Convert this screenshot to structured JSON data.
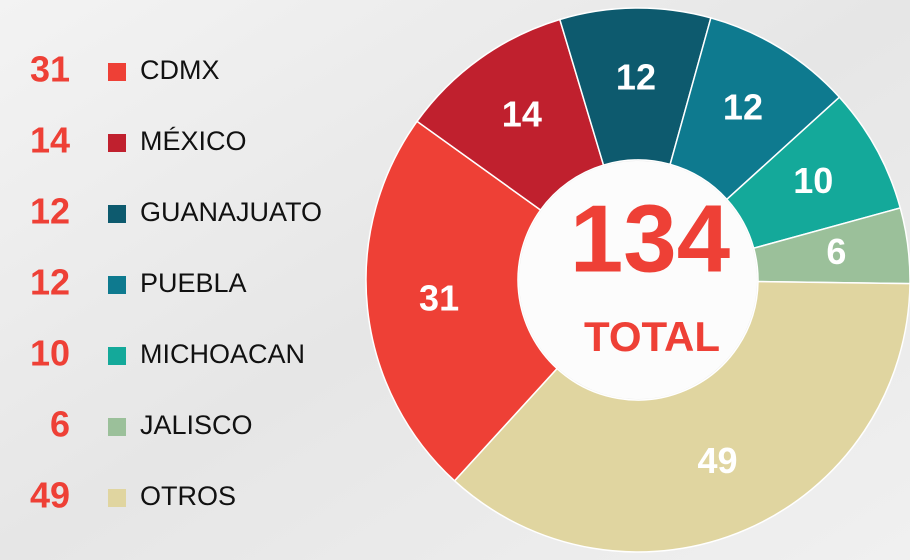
{
  "chart_data": {
    "type": "pie",
    "donut": true,
    "categories": [
      "CDMX",
      "MÉXICO",
      "GUANAJUATO",
      "PUEBLA",
      "MICHOACAN",
      "JALISCO",
      "OTROS"
    ],
    "values": [
      31,
      14,
      12,
      12,
      10,
      6,
      49
    ],
    "colors": [
      "#ee4036",
      "#c0202e",
      "#0d5a6e",
      "#0e7a8f",
      "#14a99a",
      "#9bc09a",
      "#e0d5a0"
    ],
    "total": 134,
    "total_label": "TOTAL"
  }
}
